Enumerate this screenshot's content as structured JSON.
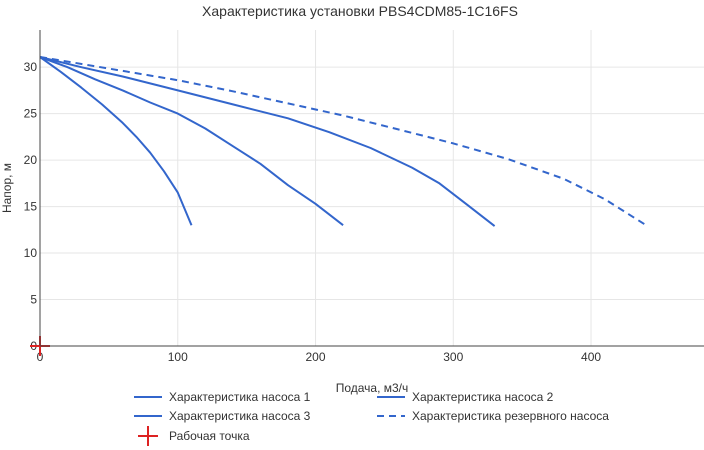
{
  "chart_data": {
    "type": "line",
    "title": "Характеристика установки PBS4CDM85-1C16FS",
    "xlabel": "Подача, м3/ч",
    "ylabel": "Напор, м",
    "xlim": [
      0,
      482
    ],
    "ylim": [
      0,
      34
    ],
    "x_ticks": [
      0,
      100,
      200,
      300,
      400
    ],
    "y_ticks": [
      0,
      5,
      10,
      15,
      20,
      25,
      30
    ],
    "grid": true,
    "legend_position": "bottom",
    "series": [
      {
        "name": "Характеристика насоса 1",
        "color": "#3366cc",
        "dash": "solid",
        "points": [
          [
            0,
            31.1
          ],
          [
            15,
            29.5
          ],
          [
            30,
            27.8
          ],
          [
            45,
            26.0
          ],
          [
            60,
            24.0
          ],
          [
            70,
            22.5
          ],
          [
            80,
            20.8
          ],
          [
            90,
            18.8
          ],
          [
            100,
            16.5
          ],
          [
            110,
            13.0
          ]
        ]
      },
      {
        "name": "Характеристика насоса 2",
        "color": "#3366cc",
        "dash": "solid",
        "points": [
          [
            0,
            31.1
          ],
          [
            20,
            30.0
          ],
          [
            40,
            28.7
          ],
          [
            60,
            27.5
          ],
          [
            80,
            26.2
          ],
          [
            100,
            25.0
          ],
          [
            120,
            23.4
          ],
          [
            140,
            21.5
          ],
          [
            160,
            19.6
          ],
          [
            180,
            17.3
          ],
          [
            200,
            15.3
          ],
          [
            220,
            13.0
          ]
        ]
      },
      {
        "name": "Характеристика насоса 3",
        "color": "#3366cc",
        "dash": "solid",
        "points": [
          [
            0,
            31.1
          ],
          [
            30,
            30.0
          ],
          [
            60,
            29.0
          ],
          [
            100,
            27.5
          ],
          [
            140,
            26.0
          ],
          [
            180,
            24.5
          ],
          [
            210,
            23.0
          ],
          [
            240,
            21.3
          ],
          [
            270,
            19.2
          ],
          [
            290,
            17.5
          ],
          [
            310,
            15.2
          ],
          [
            330,
            12.9
          ]
        ]
      },
      {
        "name": "Характеристика резервного насоса",
        "color": "#3366cc",
        "dash": "dashed",
        "points": [
          [
            0,
            31.1
          ],
          [
            20,
            30.6
          ],
          [
            60,
            29.6
          ],
          [
            100,
            28.6
          ],
          [
            140,
            27.4
          ],
          [
            180,
            26.1
          ],
          [
            220,
            24.8
          ],
          [
            260,
            23.3
          ],
          [
            300,
            21.8
          ],
          [
            340,
            20.1
          ],
          [
            380,
            18.0
          ],
          [
            410,
            15.8
          ],
          [
            440,
            13.0
          ]
        ]
      }
    ],
    "operating_point": {
      "name": "Рабочая точка",
      "color": "#dd2222",
      "x": 0,
      "y": 0
    },
    "legend": [
      "Характеристика насоса 1",
      "Характеристика насоса 2",
      "Характеристика насоса 3",
      "Характеристика резервного насоса",
      "Рабочая точка"
    ],
    "colors": {
      "grid": "#e6e6e6",
      "axis": "#444444",
      "line": "#3366cc",
      "point": "#dd2222"
    }
  }
}
